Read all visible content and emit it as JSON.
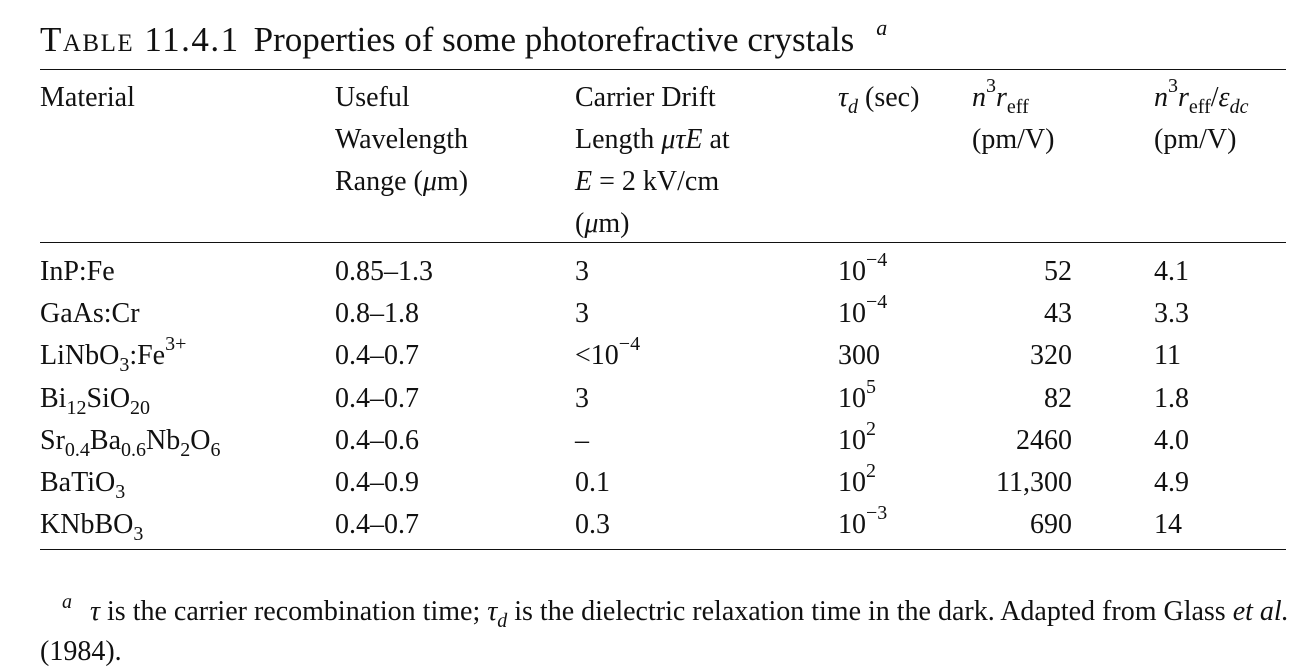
{
  "caption": {
    "label": "Table 11.4.1",
    "title": "Properties of some photorefractive crystals",
    "footnote_mark": "a"
  },
  "headers": {
    "material": "Material",
    "wavelength": [
      "Useful",
      "Wavelength",
      "Range (μm)"
    ],
    "drift": [
      "Carrier Drift",
      "Length μτE at",
      "E = 2 kV/cm",
      "(μm)"
    ],
    "tau": "τd (sec)",
    "n3r": [
      "n3reff",
      "(pm/V)"
    ],
    "n3r_eps": [
      "n3reff/εdc",
      "(pm/V)"
    ]
  },
  "rows": [
    {
      "material": "InP:Fe",
      "range": "0.85–1.3",
      "drift": "3",
      "tau": "10−4",
      "n3r": "52",
      "n3r_eps": "4.1"
    },
    {
      "material": "GaAs:Cr",
      "range": "0.8–1.8",
      "drift": "3",
      "tau": "10−4",
      "n3r": "43",
      "n3r_eps": "3.3"
    },
    {
      "material": "LiNbO3:Fe3+",
      "range": "0.4–0.7",
      "drift": "<10−4",
      "tau": "300",
      "n3r": "320",
      "n3r_eps": "11"
    },
    {
      "material": "Bi12SiO20",
      "range": "0.4–0.7",
      "drift": "3",
      "tau": "105",
      "n3r": "82",
      "n3r_eps": "1.8"
    },
    {
      "material": "Sr0.4Ba0.6Nb2O6",
      "range": "0.4–0.6",
      "drift": "–",
      "tau": "102",
      "n3r": "2460",
      "n3r_eps": "4.0"
    },
    {
      "material": "BaTiO3",
      "range": "0.4–0.9",
      "drift": "0.1",
      "tau": "102",
      "n3r": "11,300",
      "n3r_eps": "4.9"
    },
    {
      "material": "KNbBO3",
      "range": "0.4–0.7",
      "drift": "0.3",
      "tau": "10−3",
      "n3r": "690",
      "n3r_eps": "14"
    }
  ],
  "footnote": {
    "mark": "a",
    "text": "τ is the carrier recombination time; τd is the dielectric relaxation time in the dark. Adapted from Glass et al. (1984)."
  }
}
